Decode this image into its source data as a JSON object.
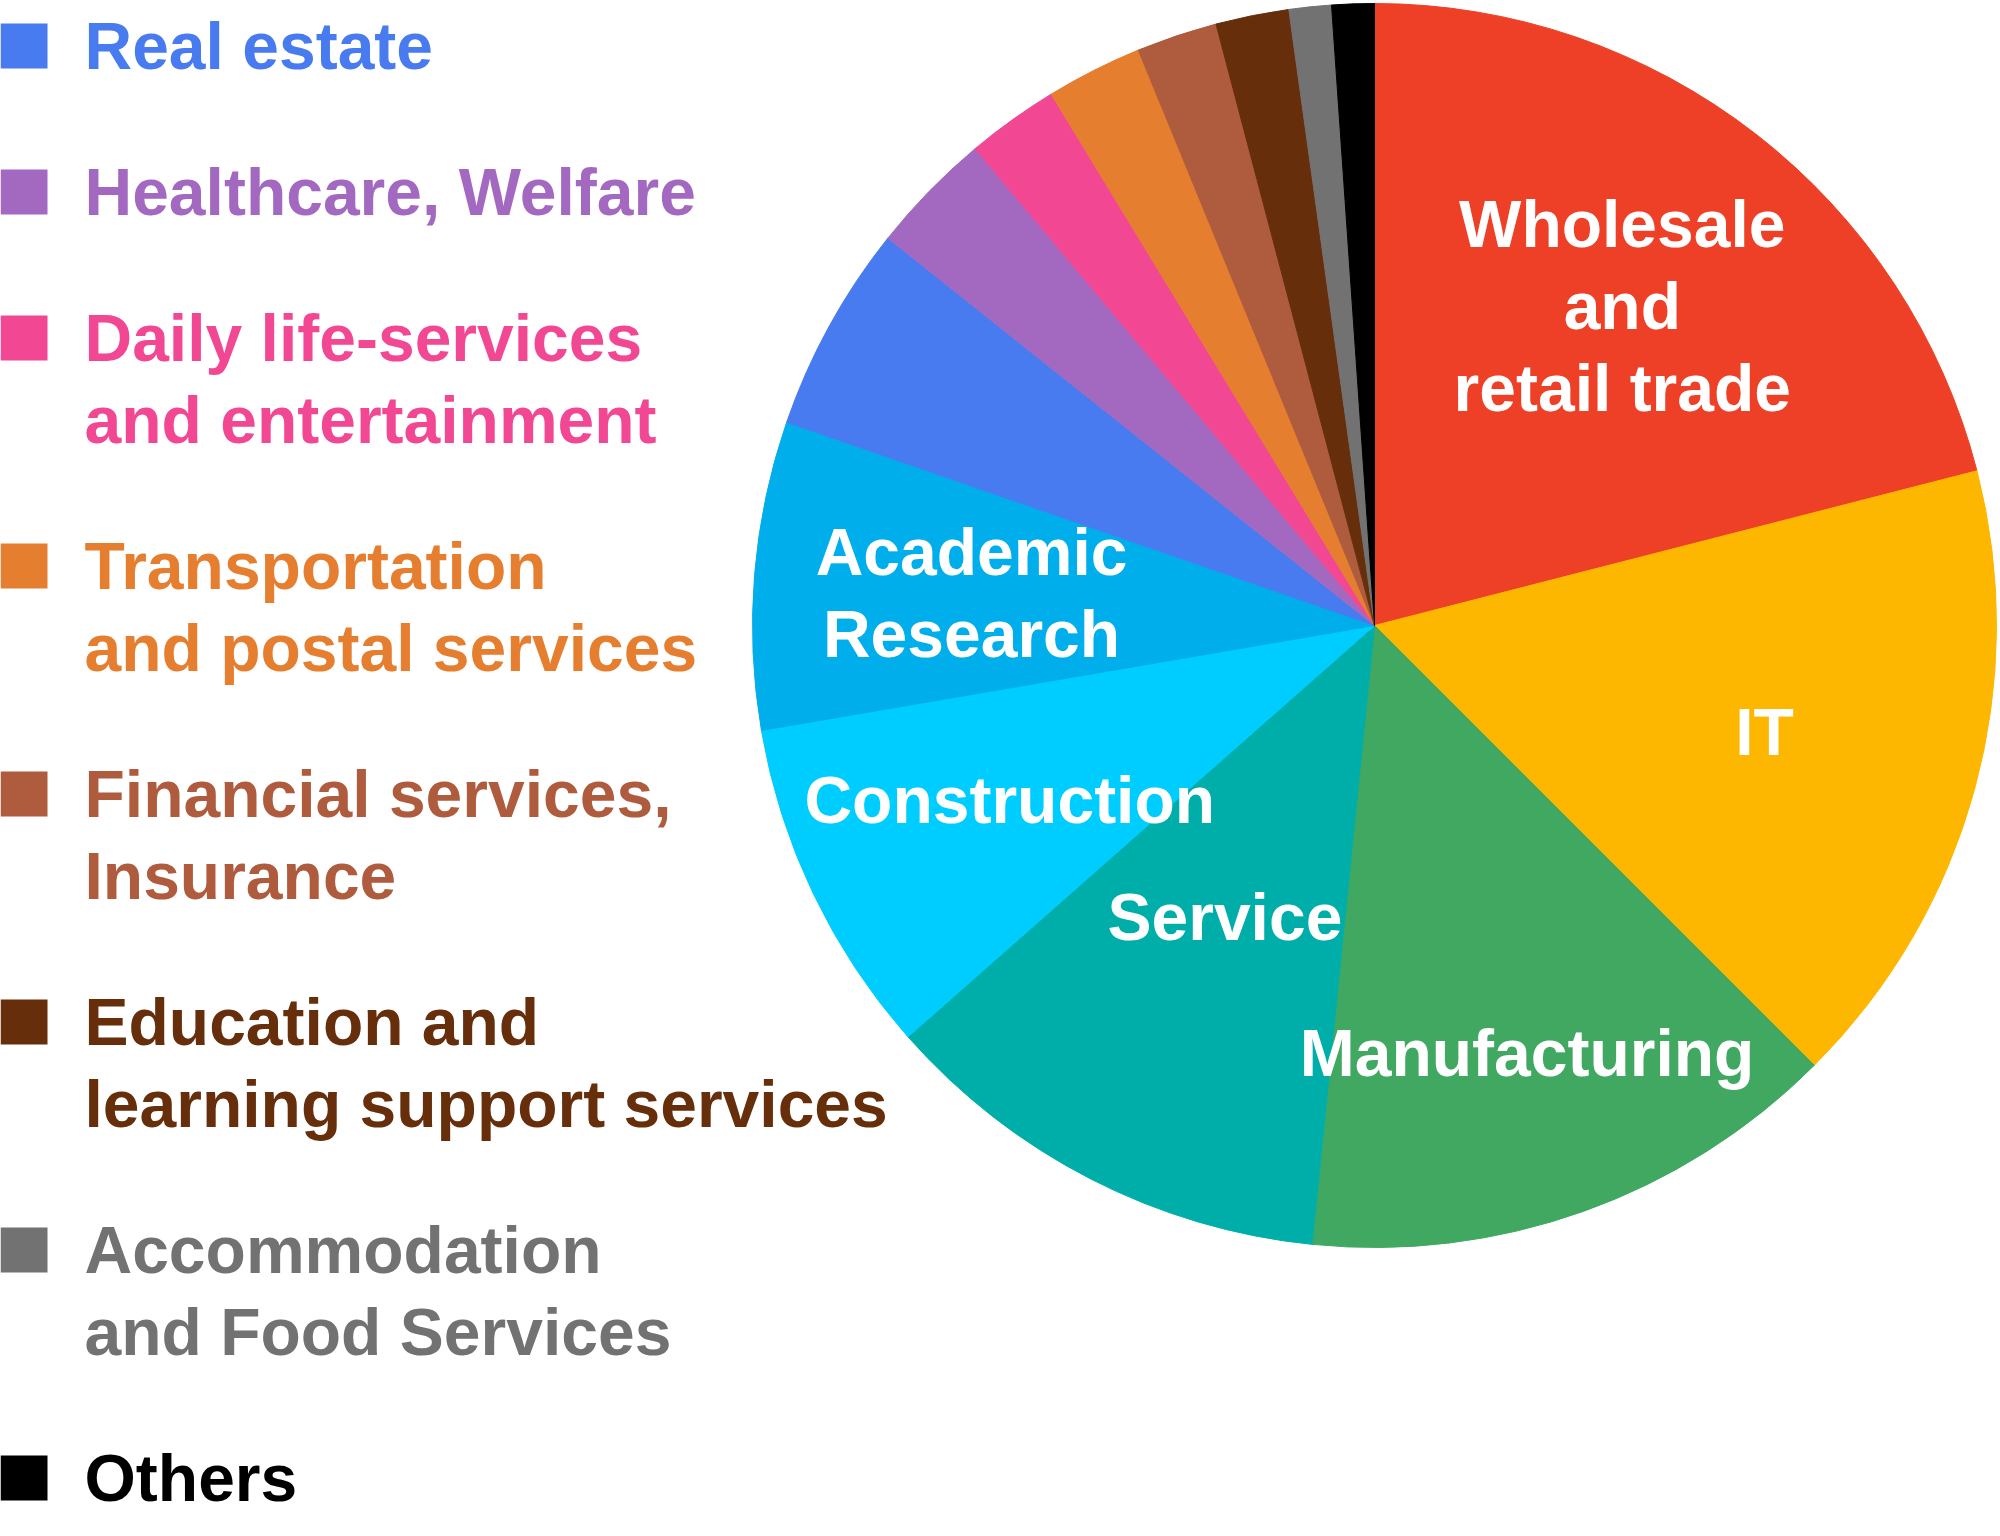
{
  "chart_data": {
    "type": "pie",
    "categories": [
      "Wholesale\nand\nretail trade",
      "IT",
      "Manufacturing",
      "Service",
      "Construction",
      "Academic\nResearch",
      "Real estate",
      "Healthcare, Welfare",
      "Daily life-services\nand entertainment",
      "Transportation\nand postal services",
      "Financial services,\nInsurance",
      "Education and\nlearning support services",
      "Accommodation\nand Food Services",
      "Others"
    ],
    "values": [
      21.0,
      16.5,
      14.1,
      11.9,
      8.8,
      8.0,
      5.4,
      3.2,
      2.4,
      2.5,
      2.1,
      1.9,
      1.1,
      1.1
    ],
    "colors": [
      "#ee4027",
      "#fdb700",
      "#41a862",
      "#00aea9",
      "#00cdff",
      "#00aeeb",
      "#487bf0",
      "#a369c0",
      "#f24793",
      "#e67e30",
      "#ae5c3d",
      "#662e0a",
      "#727272",
      "#000000"
    ],
    "legend": "left"
  }
}
